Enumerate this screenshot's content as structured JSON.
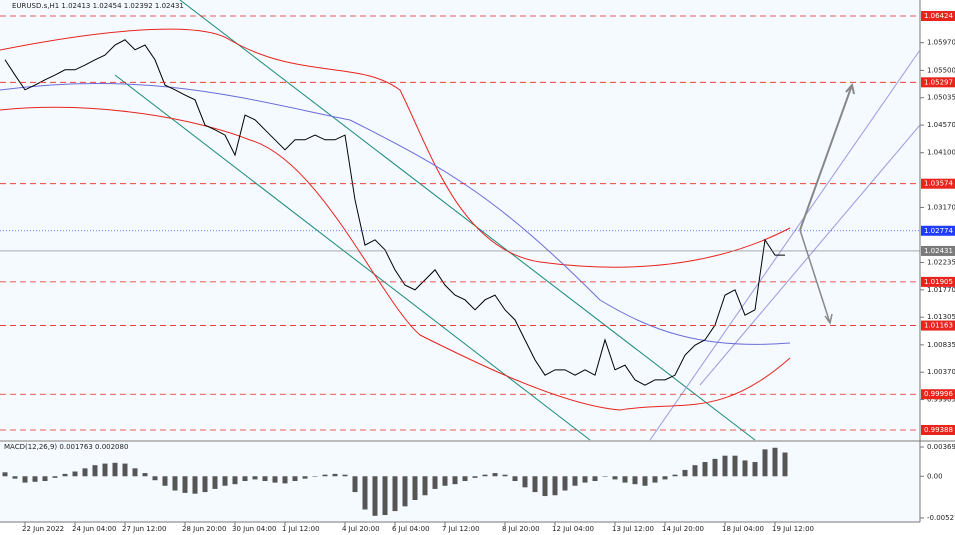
{
  "chart_data": [
    {
      "type": "line",
      "title": "EURUSD.s,H1 1.02413 1.02454 1.02392 1.02431",
      "color": "#000000",
      "categories": [
        null,
        null,
        "22 Jun 2022",
        null,
        null,
        null,
        null,
        "24 Jun 04:00",
        null,
        null,
        null,
        null,
        "27 Jun 12:00",
        null,
        null,
        null,
        null,
        null,
        "28 Jun 20:00",
        null,
        null,
        null,
        null,
        "30 Jun 04:00",
        null,
        null,
        null,
        null,
        "1 Jul 12:00",
        null,
        null,
        null,
        null,
        null,
        "4 Jul 20:00",
        null,
        null,
        null,
        null,
        "6 Jul 04:00",
        null,
        null,
        null,
        null,
        "7 Jul 12:00",
        null,
        null,
        null,
        null,
        null,
        "8 Jul 20:00",
        null,
        null,
        null,
        null,
        "12 Jul 04:00",
        null,
        null,
        null,
        null,
        null,
        "13 Jul 12:00",
        null,
        null,
        null,
        null,
        "14 Jul 20:00",
        null,
        null,
        null,
        null,
        null,
        "18 Jul 04:00",
        null,
        null,
        null,
        null,
        "19 Jul 12:00",
        null
      ],
      "values": [
        1.0568,
        1.0542,
        1.0517,
        1.0525,
        1.0534,
        1.0542,
        1.0551,
        1.0551,
        1.0559,
        1.0568,
        1.0576,
        1.0593,
        1.0602,
        1.0585,
        1.0593,
        1.0568,
        1.0525,
        1.0517,
        1.0508,
        1.05,
        1.0457,
        1.0449,
        1.044,
        1.0406,
        1.0474,
        1.0466,
        1.0449,
        1.0432,
        1.0415,
        1.0432,
        1.0432,
        1.044,
        1.0432,
        1.0432,
        1.044,
        1.033,
        1.0253,
        1.0262,
        1.0245,
        1.0211,
        1.0185,
        1.0177,
        1.0194,
        1.0211,
        1.0185,
        1.0168,
        1.016,
        1.0143,
        1.016,
        1.0168,
        1.0143,
        1.0126,
        1.0092,
        1.0058,
        1.0032,
        1.0041,
        1.0041,
        1.0032,
        1.0041,
        1.0032,
        1.0092,
        1.0041,
        1.0049,
        1.0024,
        1.0015,
        1.0024,
        1.0024,
        1.0032,
        1.0066,
        1.0083,
        1.0092,
        1.0117,
        1.0168,
        1.0177,
        1.0134,
        1.0143,
        1.0262,
        1.0236,
        1.0236
      ],
      "ylim": [
        0.99218,
        1.06696
      ],
      "yticks": [
        {
          "value": 1.0597,
          "label": "1.05970"
        },
        {
          "value": 1.055,
          "label": "1.05500"
        },
        {
          "value": 1.05035,
          "label": "1.05035"
        },
        {
          "value": 1.0457,
          "label": "1.04570"
        },
        {
          "value": 1.041,
          "label": "1.04100"
        },
        {
          "value": 1.0317,
          "label": "1.03170"
        },
        {
          "value": 1.02235,
          "label": "1.02235"
        },
        {
          "value": 1.0177,
          "label": "1.01770"
        },
        {
          "value": 1.01305,
          "label": "1.01305"
        },
        {
          "value": 1.00835,
          "label": "1.00835"
        },
        {
          "value": 1.0037,
          "label": "1.00370"
        },
        {
          "value": 0.99905,
          "label": "0.99905"
        }
      ],
      "levels": [
        1.06424,
        1.05297,
        1.03574,
        1.01905,
        1.01163,
        0.99996,
        0.99388
      ],
      "level_color": "#e8241c",
      "marked_price": 1.02774,
      "marked_color": "#1f3cff",
      "last_price": 1.02431,
      "last_color": "#7a7a7a"
    },
    {
      "type": "bar",
      "title": "MACD(12,26,9) 0.001763 0.002080",
      "color": "#555555",
      "values": [
        0.0005,
        -0.0003,
        -0.0008,
        -0.0007,
        -0.0006,
        -0.0002,
        0.0003,
        0.0006,
        0.001,
        0.0014,
        0.0016,
        0.0017,
        0.0016,
        0.001,
        0.0004,
        -0.0005,
        -0.0012,
        -0.0018,
        -0.0021,
        -0.0022,
        -0.002,
        -0.0016,
        -0.0012,
        -0.001,
        -0.0006,
        -0.0004,
        -0.0006,
        -0.0008,
        -0.0009,
        -0.0006,
        -0.0003,
        0.0,
        0.0002,
        0.0003,
        0.0002,
        -0.002,
        -0.0042,
        -0.005,
        -0.0049,
        -0.0044,
        -0.0038,
        -0.003,
        -0.0024,
        -0.0016,
        -0.0012,
        -0.001,
        -0.0006,
        -0.0002,
        0.0002,
        0.0004,
        0.0002,
        -0.0006,
        -0.0014,
        -0.002,
        -0.0025,
        -0.0024,
        -0.0018,
        -0.0012,
        -0.0008,
        -0.0006,
        0.0,
        -0.0004,
        -0.0008,
        -0.001,
        -0.0012,
        -0.0008,
        -0.0004,
        0.0002,
        0.0008,
        0.0014,
        0.0018,
        0.0022,
        0.0026,
        0.0026,
        0.002,
        0.0018,
        0.0034,
        0.0036,
        0.003
      ],
      "ylim": [
        -0.00578,
        0.00433
      ],
      "yticks": [
        0.003696,
        {
          "value": 0,
          "label": "0.00"
        },
        -0.00527
      ]
    }
  ]
}
